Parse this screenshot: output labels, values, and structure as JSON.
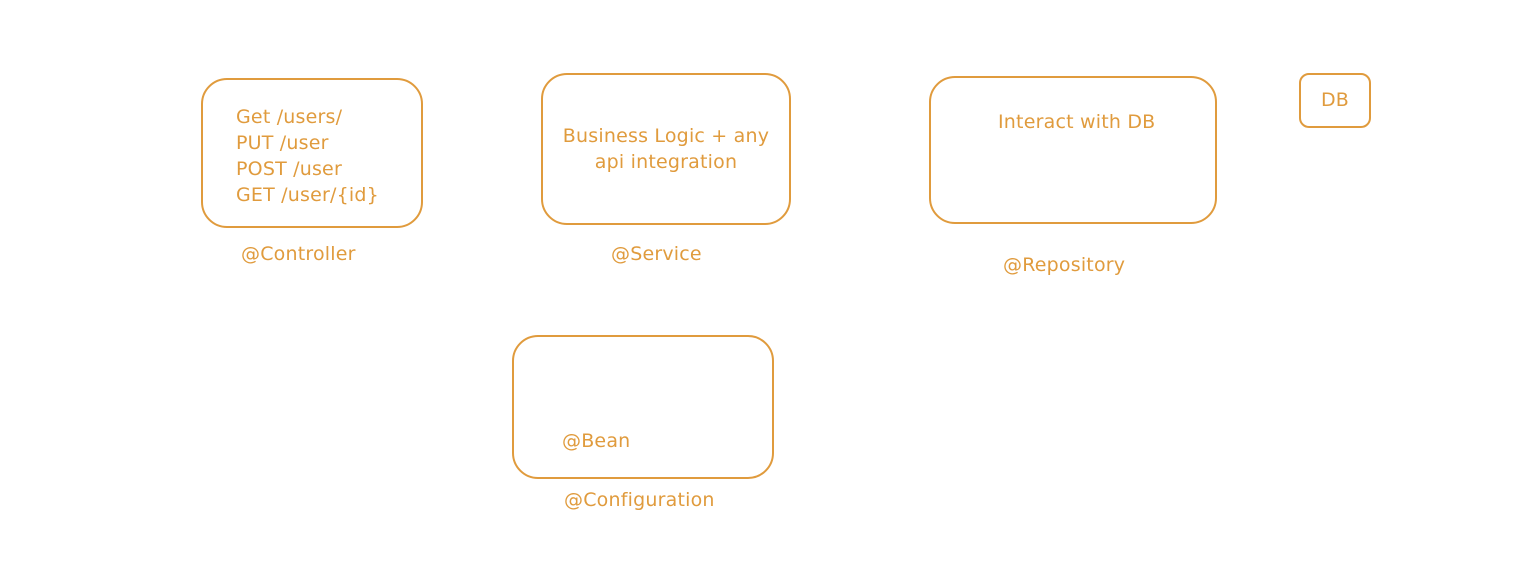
{
  "theme": {
    "stroke_color": "#e09b3d",
    "text_color": "#e09b3d",
    "background": "#ffffff"
  },
  "controller": {
    "endpoints": [
      "Get /users/",
      "PUT /user",
      "POST /user",
      "GET /user/{id}"
    ],
    "label": "@Controller"
  },
  "service": {
    "text_line1": "Business Logic + any",
    "text_line2": "api integration",
    "label": "@Service"
  },
  "repository": {
    "text": "Interact with DB",
    "label": "@Repository"
  },
  "db": {
    "text": "DB"
  },
  "configuration": {
    "inner_text": "@Bean",
    "label": "@Configuration"
  }
}
